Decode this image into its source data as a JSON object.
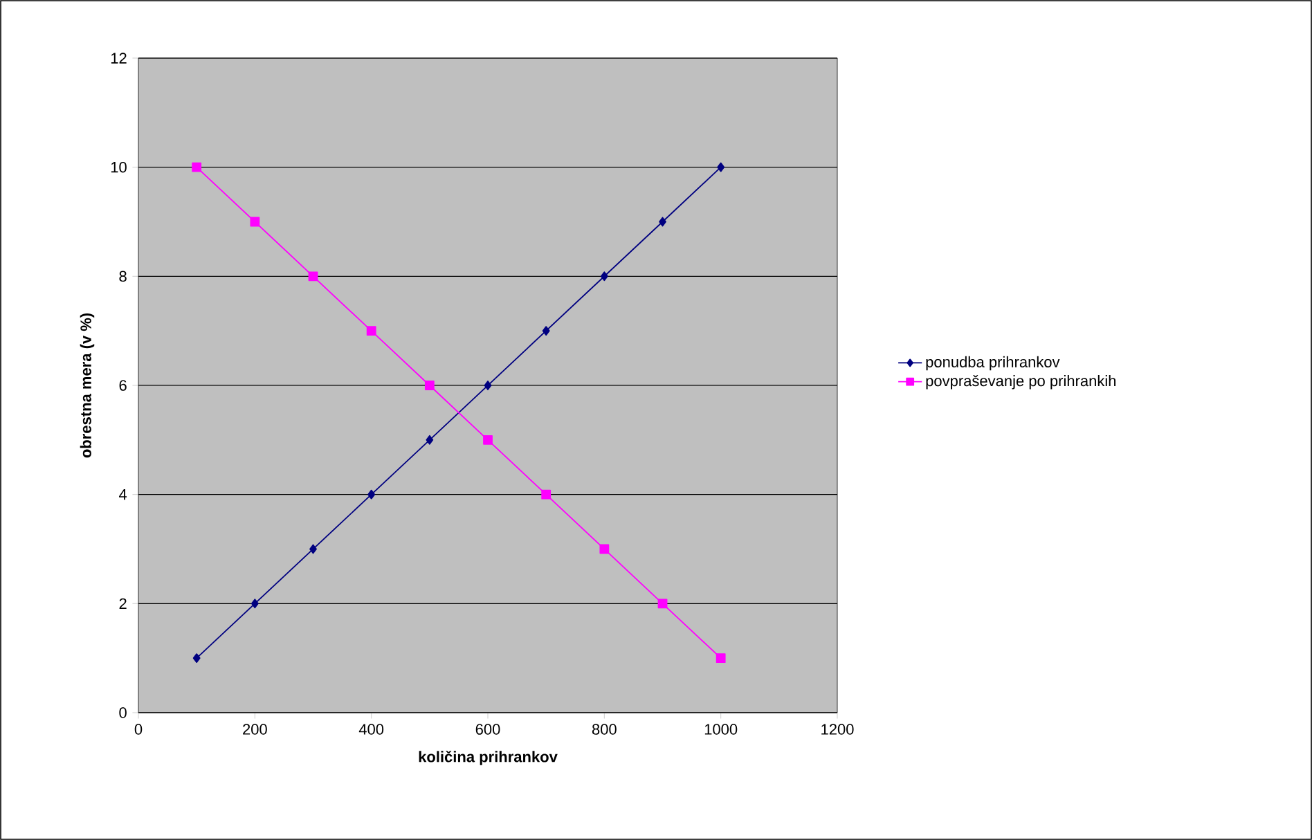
{
  "chart_data": {
    "type": "line",
    "xlabel": "količina prihrankov",
    "ylabel": "obrestna mera (v %)",
    "xlim": [
      0,
      1200
    ],
    "xticks": [
      0,
      200,
      400,
      600,
      800,
      1000,
      1200
    ],
    "ylim": [
      0,
      12
    ],
    "yticks": [
      0,
      2,
      4,
      6,
      8,
      10,
      12
    ],
    "grid": "y",
    "legend": "right",
    "line_style": "solid",
    "series": [
      {
        "name": "ponudba prihrankov",
        "color": "#000080",
        "marker": "diamond",
        "x": [
          100,
          200,
          300,
          400,
          500,
          600,
          700,
          800,
          900,
          1000
        ],
        "values": [
          1,
          2,
          3,
          4,
          5,
          6,
          7,
          8,
          9,
          10
        ]
      },
      {
        "name": "povpraševanje po prihrankih",
        "color": "#ff00ff",
        "marker": "square",
        "x": [
          100,
          200,
          300,
          400,
          500,
          600,
          700,
          800,
          900,
          1000
        ],
        "values": [
          10,
          9,
          8,
          7,
          6,
          5,
          4,
          3,
          2,
          1
        ]
      }
    ]
  }
}
